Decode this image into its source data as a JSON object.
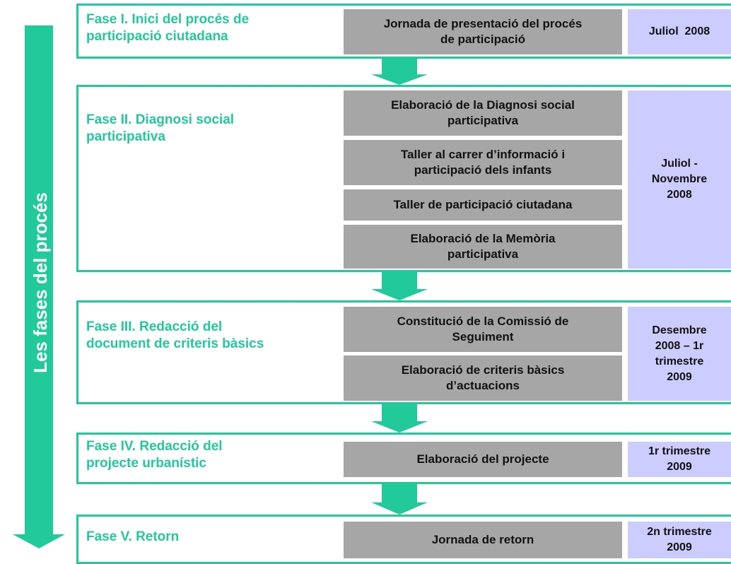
{
  "side_label": "Les fases del procés",
  "phases": [
    {
      "title": [
        "Fase I. Inici del procés de",
        "participació ciutadana"
      ],
      "activities": [
        [
          "Jornada de presentació del procés",
          "de participació"
        ]
      ],
      "period": [
        "Juliol  2008"
      ]
    },
    {
      "title": [
        "Fase II. Diagnosi social",
        "participativa"
      ],
      "activities": [
        [
          "Elaboració de la Diagnosi social",
          "participativa"
        ],
        [
          "Taller al carrer d’informació i",
          "participació dels infants"
        ],
        [
          "Taller de participació ciutadana"
        ],
        [
          "Elaboració de la Memòria",
          "participativa"
        ]
      ],
      "period": [
        "Juliol -",
        "Novembre",
        "2008"
      ]
    },
    {
      "title": [
        "Fase III. Redacció del",
        "document de criteris bàsics"
      ],
      "activities": [
        [
          "Constitució de la Comissió de",
          "Seguiment"
        ],
        [
          "Elaboració de criteris bàsics",
          "d’actuacions"
        ]
      ],
      "period": [
        "Desembre",
        "2008 – 1r",
        "trimestre",
        "2009"
      ]
    },
    {
      "title": [
        "Fase IV. Redacció del",
        "projecte urbanístic"
      ],
      "activities": [
        [
          "Elaboració del projecte"
        ]
      ],
      "period": [
        "1r trimestre",
        "2009"
      ]
    },
    {
      "title": [
        "Fase V. Retorn"
      ],
      "activities": [
        [
          "Jornada de retorn"
        ]
      ],
      "period": [
        "2n trimestre",
        "2009"
      ]
    }
  ]
}
